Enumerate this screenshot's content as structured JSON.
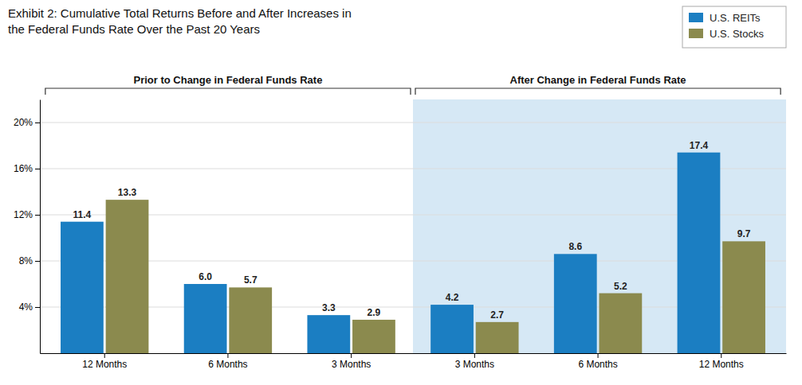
{
  "chart_data": {
    "type": "bar",
    "title": "Exhibit 2: Cumulative Total Returns Before and After Increases in",
    "subtitle": "the Federal Funds Rate Over the Past 20 Years",
    "categories": [
      "12 Months",
      "6 Months",
      "3 Months",
      "3 Months",
      "6 Months",
      "12 Months"
    ],
    "series": [
      {
        "name": "U.S. REITs",
        "color": "#1b7ec2",
        "values": [
          11.4,
          6.0,
          3.3,
          4.2,
          8.6,
          17.4
        ],
        "value_labels": [
          "11.4",
          "6.0",
          "3.3",
          "4.2",
          "8.6",
          "17.4"
        ]
      },
      {
        "name": "U.S. Stocks",
        "color": "#8b8a4e",
        "values": [
          13.3,
          5.7,
          2.9,
          2.7,
          5.2,
          9.7
        ]
      }
    ],
    "ylim": [
      0,
      22
    ],
    "yticks": [
      {
        "value": 4,
        "label": "4%"
      },
      {
        "value": 8,
        "label": "8%"
      },
      {
        "value": 12,
        "label": "12%"
      },
      {
        "value": 16,
        "label": "16%"
      },
      {
        "value": 20,
        "label": "20%"
      }
    ],
    "annotations": [
      "Prior to Change in Federal Funds Rate",
      "After Change in Federal Funds Rate"
    ],
    "grid": true,
    "legend": "upper right",
    "data_labels": true
  }
}
